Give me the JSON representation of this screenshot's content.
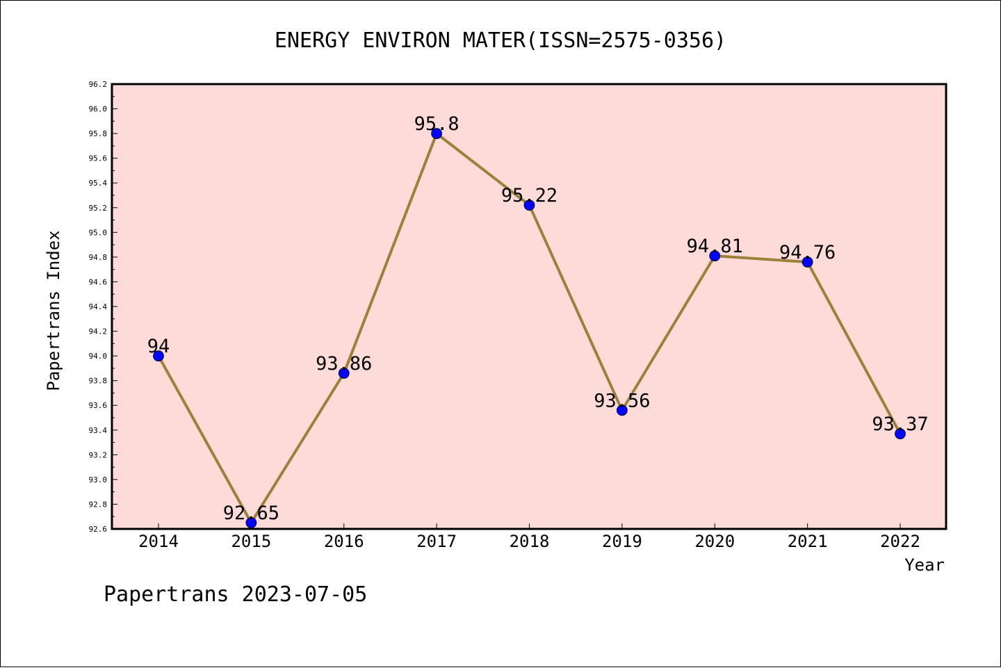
{
  "chart_data": {
    "type": "line",
    "title": "ENERGY ENVIRON MATER(ISSN=2575-0356)",
    "xlabel": "Year",
    "ylabel": "Papertrans Index",
    "categories": [
      "2014",
      "2015",
      "2016",
      "2017",
      "2018",
      "2019",
      "2020",
      "2021",
      "2022"
    ],
    "series": [
      {
        "values": [
          94,
          92.65,
          93.86,
          95.8,
          95.22,
          93.56,
          94.81,
          94.76,
          93.37
        ],
        "labels": [
          "94",
          "92.65",
          "93.86",
          "95.8",
          "95.22",
          "93.56",
          "94.81",
          "94.76",
          "93.37"
        ]
      }
    ],
    "ylim": [
      92.6,
      96.2
    ],
    "yticks": [
      "92.6",
      "92.8",
      "93.0",
      "93.2",
      "93.4",
      "93.6",
      "93.8",
      "94.0",
      "94.2",
      "94.4",
      "94.6",
      "94.8",
      "95.0",
      "95.2",
      "95.4",
      "95.6",
      "95.8",
      "96.0",
      "96.2"
    ],
    "grid": false,
    "colors": {
      "plot_background": "#fddbd9",
      "line": "#9b8139",
      "marker": "#0000ff"
    }
  },
  "footer": {
    "text": "Papertrans 2023-07-05"
  }
}
